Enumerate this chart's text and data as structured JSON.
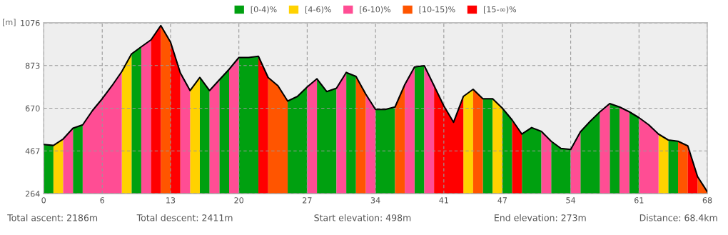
{
  "chart_data": {
    "type": "area",
    "ylabel": "[m]",
    "legend": "top",
    "grid": true,
    "xlim": [
      0,
      68
    ],
    "xticks": [
      0,
      6,
      13,
      20,
      27,
      34,
      41,
      47,
      54,
      61,
      68
    ],
    "ylim": [
      264,
      1076
    ],
    "yticks": [
      264,
      467,
      670,
      873,
      1076
    ],
    "series": [
      {
        "name": "[0-4)%",
        "color": "#00a010",
        "x": [
          0,
          1,
          null,
          3,
          4,
          null,
          9,
          10,
          null,
          16,
          17,
          null,
          18,
          19,
          null,
          20,
          21,
          22,
          null,
          25,
          26,
          27,
          null,
          28,
          29,
          30,
          null,
          31,
          32,
          null,
          34,
          35,
          36,
          null,
          38,
          39,
          null,
          45,
          46,
          null,
          47,
          48,
          null,
          49,
          50,
          51,
          null,
          52,
          53,
          54,
          null,
          55,
          56,
          57,
          null,
          58,
          59,
          null,
          60,
          61,
          null,
          64,
          65
        ],
        "values": [
          498,
          493,
          null,
          575,
          591,
          null,
          928,
          962,
          null,
          816,
          754,
          null,
          805,
          855,
          null,
          911,
          911,
          917,
          null,
          704,
          726,
          771,
          null,
          810,
          749,
          765,
          null,
          840,
          821,
          null,
          664,
          664,
          676,
          null,
          866,
          872,
          null,
          715,
          715,
          null,
          670,
          614,
          null,
          547,
          578,
          560,
          null,
          513,
          479,
          474,
          null,
          558,
          608,
          653,
          null,
          692,
          676,
          null,
          653,
          625,
          null,
          519,
          513
        ]
      },
      {
        "name": "[4-6)%",
        "color": "#ffd200",
        "x": [
          1,
          2,
          null,
          8,
          9,
          null,
          15,
          16,
          null,
          43,
          44,
          null,
          46,
          47,
          null,
          63,
          64
        ],
        "values": [
          493,
          524,
          null,
          844,
          928,
          null,
          754,
          816,
          null,
          726,
          760,
          null,
          715,
          670,
          null,
          547,
          519
        ]
      },
      {
        "name": "[6-10)%",
        "color": "#ff4d94",
        "x": [
          2,
          3,
          null,
          4,
          5,
          6,
          7,
          8,
          null,
          10,
          11,
          null,
          14,
          15,
          null,
          17,
          18,
          null,
          19,
          20,
          null,
          27,
          28,
          null,
          30,
          31,
          null,
          33,
          34,
          null,
          37,
          38,
          null,
          39,
          40,
          null,
          51,
          52,
          null,
          54,
          55,
          null,
          57,
          58,
          null,
          59,
          60,
          null,
          61,
          62,
          63
        ],
        "values": [
          524,
          575,
          null,
          591,
          659,
          715,
          777,
          844,
          null,
          962,
          995,
          null,
          838,
          754,
          null,
          754,
          805,
          null,
          855,
          911,
          null,
          771,
          810,
          null,
          765,
          840,
          null,
          737,
          664,
          null,
          782,
          866,
          null,
          872,
          777,
          null,
          560,
          513,
          null,
          474,
          558,
          null,
          653,
          692,
          null,
          676,
          653,
          null,
          625,
          591,
          547
        ]
      },
      {
        "name": "[10-15)%",
        "color": "#ff5500",
        "x": [
          12,
          13,
          null,
          23,
          24,
          25,
          null,
          32,
          33,
          null,
          36,
          37,
          null,
          44,
          45,
          null,
          65,
          66,
          null,
          67,
          68
        ],
        "values": [
          1063,
          984,
          null,
          816,
          777,
          704,
          null,
          821,
          737,
          null,
          676,
          782,
          null,
          760,
          715,
          null,
          513,
          491,
          null,
          345,
          273
        ]
      },
      {
        "name": "[15-∞)%",
        "color": "#ff0000",
        "x": [
          11,
          12,
          null,
          13,
          14,
          null,
          22,
          23,
          null,
          40,
          41,
          42,
          43,
          null,
          48,
          49,
          null,
          66,
          67
        ],
        "values": [
          995,
          1063,
          null,
          984,
          838,
          null,
          917,
          816,
          null,
          777,
          681,
          603,
          726,
          null,
          614,
          547,
          null,
          491,
          345
        ]
      },
      {
        "type": "line",
        "color": "#000000",
        "x": [
          0,
          1,
          2,
          3,
          4,
          5,
          6,
          7,
          8,
          9,
          10,
          11,
          12,
          13,
          14,
          15,
          16,
          17,
          18,
          19,
          20,
          21,
          22,
          23,
          24,
          25,
          26,
          27,
          28,
          29,
          30,
          31,
          32,
          33,
          34,
          35,
          36,
          37,
          38,
          39,
          40,
          41,
          42,
          43,
          44,
          45,
          46,
          47,
          48,
          49,
          50,
          51,
          52,
          53,
          54,
          55,
          56,
          57,
          58,
          59,
          60,
          61,
          62,
          63,
          64,
          65,
          66,
          67,
          68
        ],
        "values": [
          498,
          493,
          524,
          575,
          591,
          659,
          715,
          777,
          844,
          928,
          962,
          995,
          1063,
          984,
          838,
          754,
          816,
          754,
          805,
          855,
          911,
          911,
          917,
          816,
          777,
          704,
          726,
          771,
          810,
          749,
          765,
          840,
          821,
          737,
          664,
          664,
          676,
          782,
          866,
          872,
          777,
          681,
          603,
          726,
          760,
          715,
          715,
          670,
          614,
          547,
          578,
          560,
          513,
          479,
          474,
          558,
          608,
          653,
          692,
          676,
          653,
          625,
          591,
          547,
          519,
          513,
          491,
          345,
          273
        ]
      }
    ],
    "annotations": [
      "Total ascent: 2186m",
      "Total descent: 2411m",
      "Start elevation: 498m",
      "End elevation: 273m",
      "Distance: 68.4km"
    ]
  }
}
